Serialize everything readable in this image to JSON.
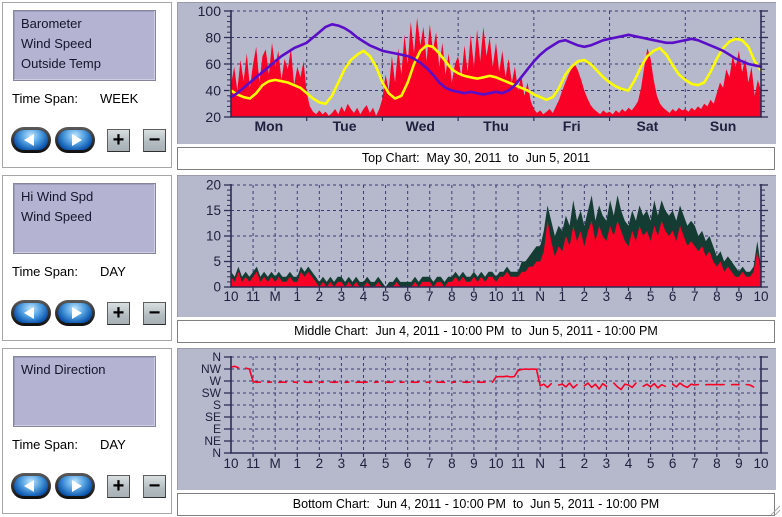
{
  "colors": {
    "chart_background": "#b6b9cc",
    "grid": "#3c3c6e",
    "axis": "#2d2d55",
    "axis_text": "#20203f",
    "wind_red": "#f90026",
    "temp_yellow": "#fdfd00",
    "barometer_purple": "#5a0ec8",
    "hi_wind_green": "#143c33"
  },
  "panels": [
    {
      "items": [
        "Barometer",
        "Wind Speed",
        "Outside Temp"
      ],
      "time_span_label": "Time Span:",
      "time_span": "WEEK"
    },
    {
      "items": [
        "Hi Wind Spd",
        "Wind Speed"
      ],
      "time_span_label": "Time Span:",
      "time_span": "DAY"
    },
    {
      "items": [
        "Wind Direction"
      ],
      "time_span_label": "Time Span:",
      "time_span": "DAY"
    }
  ],
  "buttons": {
    "zoom_in": "+",
    "zoom_out": "−"
  },
  "chart_data": [
    {
      "type": "area",
      "position": "top",
      "caption": "Top Chart:  May 30, 2011  to  Jun 5, 2011",
      "x_axis": {
        "label_mode": "center",
        "divisions": 7,
        "labels": [
          "Mon",
          "Tue",
          "Wed",
          "Thu",
          "Fri",
          "Sat",
          "Sun"
        ]
      },
      "y_axis": {
        "min": 20,
        "max": 100,
        "major_step": 20,
        "minor_step": 4
      },
      "series": [
        {
          "name": "Wind Speed",
          "type": "area",
          "color": "#f90026",
          "sample_hours": 1,
          "values": [
            44,
            58,
            40,
            63,
            47,
            68,
            42,
            60,
            73,
            46,
            66,
            71,
            52,
            76,
            58,
            70,
            48,
            64,
            56,
            72,
            44,
            58,
            50,
            62,
            38,
            28,
            24,
            22,
            25,
            22,
            24,
            21,
            23,
            26,
            22,
            28,
            24,
            30,
            26,
            23,
            27,
            22,
            26,
            29,
            23,
            27,
            21,
            26,
            34,
            52,
            40,
            66,
            46,
            72,
            52,
            82,
            60,
            92,
            68,
            95,
            74,
            88,
            62,
            90,
            70,
            84,
            58,
            76,
            52,
            68,
            46,
            60,
            66,
            50,
            74,
            54,
            82,
            58,
            86,
            62,
            88,
            66,
            80,
            58,
            76,
            54,
            70,
            50,
            64,
            46,
            58,
            40,
            52,
            36,
            46,
            32,
            26,
            23,
            25,
            22,
            24,
            26,
            23,
            28,
            33,
            40,
            46,
            52,
            57,
            60,
            55,
            48,
            40,
            34,
            29,
            26,
            24,
            22,
            25,
            23,
            24,
            22,
            25,
            23,
            26,
            24,
            27,
            25,
            28,
            32,
            42,
            58,
            72,
            64,
            48,
            36,
            30,
            27,
            25,
            23,
            26,
            24,
            27,
            25,
            26,
            24,
            27,
            25,
            28,
            26,
            30,
            28,
            33,
            30,
            38,
            46,
            42,
            56,
            50,
            66,
            58,
            70,
            54,
            64,
            46,
            58,
            36,
            48,
            40
          ]
        },
        {
          "name": "Outside Temp",
          "type": "line",
          "color": "#fdfd00",
          "width": 2.6,
          "sample_hours": 2,
          "values": [
            40,
            37,
            35,
            34,
            38,
            44,
            47,
            48,
            47,
            46,
            44,
            42,
            38,
            34,
            31,
            30,
            36,
            46,
            56,
            63,
            67,
            70,
            66,
            58,
            46,
            38,
            34,
            36,
            46,
            60,
            70,
            74,
            73,
            68,
            62,
            56,
            53,
            51,
            50,
            49,
            50,
            51,
            50,
            48,
            46,
            44,
            42,
            40,
            37,
            35,
            33,
            35,
            42,
            52,
            58,
            62,
            63,
            60,
            55,
            50,
            46,
            43,
            41,
            40,
            48,
            58,
            66,
            70,
            72,
            67,
            59,
            52,
            48,
            45,
            44,
            46,
            54,
            64,
            72,
            77,
            79,
            78,
            73,
            62,
            55
          ]
        },
        {
          "name": "Barometer",
          "type": "line",
          "color": "#5a0ec8",
          "width": 2.6,
          "sample_hours": 2,
          "values": [
            35,
            38,
            42,
            46,
            50,
            54,
            58,
            62,
            66,
            69,
            72,
            74,
            76,
            80,
            84,
            88,
            90,
            89,
            87,
            84,
            80,
            77,
            74,
            72,
            70,
            69,
            68,
            67,
            66,
            64,
            61,
            57,
            52,
            46,
            42,
            40,
            39,
            38,
            39,
            38,
            37,
            38,
            39,
            38,
            40,
            44,
            50,
            56,
            62,
            67,
            71,
            74,
            77,
            78,
            76,
            74,
            73,
            74,
            76,
            78,
            79,
            80,
            81,
            82,
            81,
            80,
            79,
            78,
            77,
            76,
            76,
            77,
            78,
            79,
            78,
            76,
            74,
            72,
            70,
            67,
            64,
            62,
            60,
            59,
            58
          ]
        }
      ]
    },
    {
      "type": "area",
      "position": "middle",
      "caption": "Middle Chart:  Jun 4, 2011 - 10:00 PM  to  Jun 5, 2011 - 10:00 PM",
      "x_axis": {
        "label_mode": "edge",
        "divisions": 24,
        "labels": [
          "10",
          "11",
          "M",
          "1",
          "2",
          "3",
          "4",
          "5",
          "6",
          "7",
          "8",
          "9",
          "10",
          "11",
          "N",
          "1",
          "2",
          "3",
          "4",
          "5",
          "6",
          "7",
          "8",
          "9",
          "10"
        ]
      },
      "y_axis": {
        "min": 0,
        "max": 20,
        "major_step": 5,
        "minor_step": 1
      },
      "series": [
        {
          "name": "Hi Wind Spd",
          "type": "area",
          "color": "#143c33",
          "sample_minutes": 10,
          "values": [
            3,
            2,
            4,
            2,
            3,
            2,
            3,
            4,
            2,
            3,
            2,
            3,
            2,
            3,
            2,
            2,
            3,
            2,
            2,
            4,
            3,
            4,
            3,
            2,
            1,
            2,
            1,
            2,
            1,
            2,
            2,
            1,
            2,
            1,
            2,
            1,
            1,
            2,
            1,
            1,
            2,
            1,
            0,
            1,
            1,
            2,
            1,
            1,
            1,
            1,
            2,
            1,
            2,
            2,
            2,
            1,
            2,
            2,
            1,
            2,
            2,
            3,
            2,
            3,
            2,
            2,
            3,
            2,
            3,
            2,
            3,
            3,
            2,
            3,
            3,
            4,
            3,
            3,
            3,
            5,
            5,
            6,
            7,
            8,
            8,
            11,
            16,
            13,
            10,
            12,
            11,
            14,
            12,
            17,
            13,
            15,
            12,
            15,
            18,
            13,
            16,
            14,
            13,
            17,
            14,
            18,
            15,
            13,
            12,
            15,
            13,
            16,
            14,
            15,
            13,
            17,
            14,
            17,
            15,
            14,
            15,
            13,
            16,
            14,
            12,
            13,
            12,
            10,
            11,
            9,
            10,
            8,
            6,
            7,
            5,
            6,
            5,
            4,
            3,
            4,
            3,
            3,
            4,
            9,
            4
          ]
        },
        {
          "name": "Wind Speed",
          "type": "area",
          "color": "#f90026",
          "sample_minutes": 10,
          "values": [
            2,
            1,
            3,
            1,
            2,
            1,
            2,
            3,
            1,
            2,
            1,
            2,
            1,
            2,
            1,
            1,
            2,
            1,
            1,
            3,
            2,
            3,
            2,
            1,
            0,
            1,
            0,
            1,
            0,
            1,
            1,
            0,
            1,
            0,
            1,
            0,
            0,
            1,
            0,
            0,
            1,
            0,
            0,
            0,
            0,
            1,
            0,
            0,
            0,
            0,
            1,
            0,
            1,
            1,
            1,
            0,
            1,
            1,
            0,
            1,
            1,
            2,
            1,
            2,
            1,
            1,
            2,
            1,
            2,
            1,
            2,
            2,
            1,
            2,
            2,
            3,
            2,
            2,
            2,
            3,
            3,
            4,
            4,
            5,
            5,
            7,
            13,
            9,
            6,
            8,
            7,
            10,
            8,
            12,
            9,
            11,
            8,
            11,
            13,
            9,
            12,
            10,
            9,
            12,
            10,
            13,
            11,
            9,
            8,
            11,
            9,
            12,
            10,
            11,
            9,
            12,
            10,
            13,
            11,
            10,
            11,
            9,
            12,
            10,
            8,
            9,
            8,
            7,
            8,
            6,
            7,
            5,
            4,
            5,
            3,
            4,
            3,
            2,
            2,
            3,
            2,
            2,
            3,
            7,
            3
          ]
        }
      ]
    },
    {
      "type": "line",
      "position": "bottom",
      "caption": "Bottom Chart:  Jun 4, 2011 - 10:00 PM  to  Jun 5, 2011 - 10:00 PM",
      "x_axis": {
        "label_mode": "edge",
        "divisions": 24,
        "labels": [
          "10",
          "11",
          "M",
          "1",
          "2",
          "3",
          "4",
          "5",
          "6",
          "7",
          "8",
          "9",
          "10",
          "11",
          "N",
          "1",
          "2",
          "3",
          "4",
          "5",
          "6",
          "7",
          "8",
          "9",
          "10"
        ]
      },
      "y_axis": {
        "min": 0,
        "max": 360,
        "category_labels": [
          {
            "v": 360,
            "t": "N"
          },
          {
            "v": 315,
            "t": "NW"
          },
          {
            "v": 270,
            "t": "W"
          },
          {
            "v": 225,
            "t": "SW"
          },
          {
            "v": 180,
            "t": "S"
          },
          {
            "v": 135,
            "t": "SE"
          },
          {
            "v": 90,
            "t": "E"
          },
          {
            "v": 45,
            "t": "NE"
          },
          {
            "v": 0,
            "t": "N"
          }
        ]
      },
      "series": [
        {
          "name": "Wind Direction",
          "type": "segments",
          "color": "#f90026",
          "width": 1.6,
          "sample_minutes": 10,
          "values": [
            322,
            325,
            320,
            null,
            318,
            315,
            268,
            265,
            266,
            null,
            265,
            266,
            null,
            265,
            266,
            265,
            null,
            266,
            265,
            null,
            266,
            265,
            265,
            null,
            266,
            265,
            null,
            266,
            265,
            266,
            null,
            265,
            266,
            null,
            265,
            266,
            265,
            266,
            null,
            265,
            266,
            null,
            266,
            265,
            266,
            null,
            265,
            266,
            null,
            266,
            265,
            266,
            null,
            265,
            266,
            null,
            265,
            266,
            265,
            null,
            265,
            266,
            null,
            266,
            265,
            266,
            null,
            266,
            265,
            266,
            null,
            265,
            285,
            287,
            286,
            288,
            285,
            287,
            310,
            313,
            315,
            314,
            315,
            314,
            252,
            258,
            246,
            260,
            null,
            255,
            258,
            248,
            262,
            244,
            256,
            null,
            252,
            262,
            246,
            258,
            240,
            260,
            250,
            null,
            262,
            248,
            238,
            258,
            255,
            246,
            262,
            null,
            250,
            258,
            248,
            260,
            244,
            256,
            250,
            null,
            258,
            248,
            262,
            252,
            246,
            258,
            255,
            257,
            null,
            256,
            257,
            256,
            257,
            256,
            257,
            null,
            256,
            257,
            256,
            null,
            257,
            255,
            248,
            null,
            240
          ]
        }
      ]
    }
  ]
}
